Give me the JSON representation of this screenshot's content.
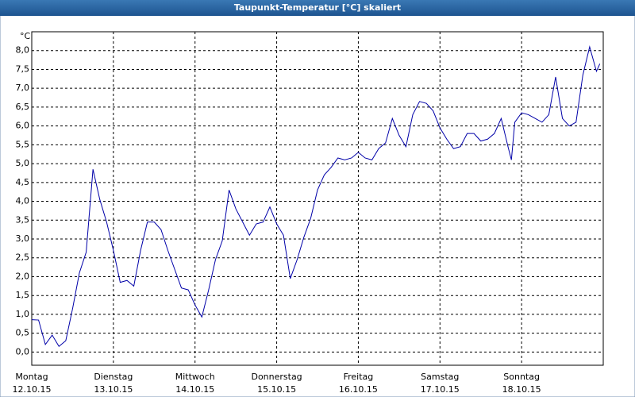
{
  "chart_data": {
    "type": "line",
    "title": "Taupunkt-Temperatur [°C] skaliert",
    "ylabel": "°C",
    "x": [
      0,
      2,
      4,
      6,
      8,
      10,
      12,
      14,
      16,
      18,
      20,
      22,
      24,
      26,
      28,
      30,
      32,
      34,
      36,
      38,
      40,
      42,
      44,
      46,
      48,
      50,
      52,
      54,
      56,
      58,
      60,
      62,
      64,
      66,
      68,
      70,
      72,
      74,
      76,
      78,
      80,
      82,
      84,
      86,
      88,
      90,
      92,
      94,
      96,
      98,
      100,
      102,
      104,
      106,
      108,
      110,
      112,
      114,
      116,
      118,
      120,
      122,
      124,
      126,
      128,
      130,
      132,
      134,
      136,
      138,
      140,
      141,
      142,
      144,
      146,
      148,
      150,
      152,
      154,
      156,
      158,
      160,
      162,
      164,
      166,
      167
    ],
    "series": [
      {
        "name": "Taupunkt",
        "color": "#0000a8",
        "values": [
          0.86,
          0.85,
          0.2,
          0.45,
          0.15,
          0.3,
          1.15,
          2.1,
          2.65,
          4.85,
          4.05,
          3.45,
          2.7,
          1.85,
          1.9,
          1.75,
          2.7,
          3.45,
          3.45,
          3.25,
          2.7,
          2.2,
          1.7,
          1.65,
          1.25,
          0.93,
          1.65,
          2.45,
          2.95,
          4.3,
          3.8,
          3.45,
          3.1,
          3.4,
          3.45,
          3.85,
          3.4,
          3.1,
          1.95,
          2.45,
          3.05,
          3.55,
          4.3,
          4.7,
          4.9,
          5.15,
          5.1,
          5.15,
          5.3,
          5.15,
          5.1,
          5.4,
          5.55,
          6.2,
          5.75,
          5.45,
          6.3,
          6.65,
          6.6,
          6.4,
          5.95,
          5.65,
          5.4,
          5.45,
          5.8,
          5.8,
          5.6,
          5.65,
          5.8,
          6.2,
          5.45,
          5.1,
          6.1,
          6.35,
          6.3,
          6.2,
          6.1,
          6.3,
          7.3,
          6.2,
          6.0,
          6.1,
          7.35,
          8.1,
          7.45,
          7.65
        ]
      }
    ],
    "xlim": [
      0,
      168
    ],
    "xticks": [
      {
        "value": 0,
        "label": "Montag",
        "date": "12.10.15"
      },
      {
        "value": 24,
        "label": "Dienstag",
        "date": "13.10.15"
      },
      {
        "value": 48,
        "label": "Mittwoch",
        "date": "14.10.15"
      },
      {
        "value": 72,
        "label": "Donnerstag",
        "date": "15.10.15"
      },
      {
        "value": 96,
        "label": "Freitag",
        "date": "16.10.15"
      },
      {
        "value": 120,
        "label": "Samstag",
        "date": "17.10.15"
      },
      {
        "value": 144,
        "label": "Sonntag",
        "date": "18.10.15"
      }
    ],
    "ylim": [
      -0.35,
      8.5
    ],
    "yticks": [
      {
        "value": 0,
        "label": "0,0"
      },
      {
        "value": 0.5,
        "label": "0,5"
      },
      {
        "value": 1,
        "label": "1,0"
      },
      {
        "value": 1.5,
        "label": "1,5"
      },
      {
        "value": 2,
        "label": "2,0"
      },
      {
        "value": 2.5,
        "label": "2,5"
      },
      {
        "value": 3,
        "label": "3,0"
      },
      {
        "value": 3.5,
        "label": "3,5"
      },
      {
        "value": 4,
        "label": "4,0"
      },
      {
        "value": 4.5,
        "label": "4,5"
      },
      {
        "value": 5,
        "label": "5,0"
      },
      {
        "value": 5.5,
        "label": "5,5"
      },
      {
        "value": 6,
        "label": "6,0"
      },
      {
        "value": 6.5,
        "label": "6,5"
      },
      {
        "value": 7,
        "label": "7,0"
      },
      {
        "value": 7.5,
        "label": "7,5"
      },
      {
        "value": 8,
        "label": "8,0"
      }
    ],
    "grid": true
  }
}
